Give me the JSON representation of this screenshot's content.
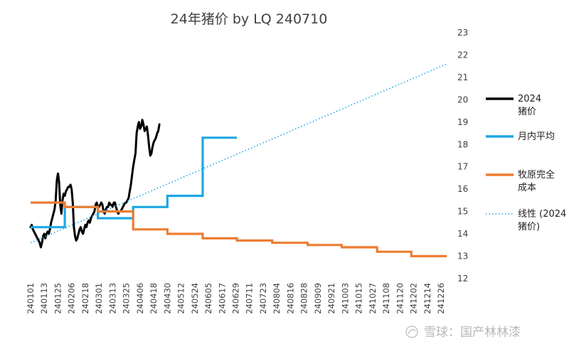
{
  "chart_data": {
    "type": "line",
    "title": "24年猪价  by LQ 240710",
    "xlabel": "",
    "ylabel": "",
    "ylim": [
      12,
      23
    ],
    "yticks": [
      12,
      13,
      14,
      15,
      16,
      17,
      18,
      19,
      20,
      21,
      22,
      23
    ],
    "grid": false,
    "legend_position": "right",
    "x_tick_labels": [
      "240101",
      "240113",
      "240125",
      "240206",
      "240218",
      "240301",
      "240313",
      "240325",
      "240406",
      "240418",
      "240430",
      "240512",
      "240524",
      "240605",
      "240617",
      "240629",
      "240711",
      "240723",
      "240804",
      "240816",
      "240828",
      "240909",
      "240921",
      "241003",
      "241015",
      "241027",
      "241108",
      "241120",
      "241202",
      "241214",
      "241226"
    ],
    "series": [
      {
        "name": "2024猪价",
        "color": "#000000",
        "style": "solid-thick",
        "points": [
          [
            "240101",
            14.3
          ],
          [
            "240102",
            14.4
          ],
          [
            "240103",
            14.2
          ],
          [
            "240104",
            14.1
          ],
          [
            "240105",
            14.0
          ],
          [
            "240106",
            13.9
          ],
          [
            "240107",
            13.8
          ],
          [
            "240108",
            13.7
          ],
          [
            "240109",
            13.6
          ],
          [
            "240110",
            13.4
          ],
          [
            "240111",
            13.6
          ],
          [
            "240112",
            13.9
          ],
          [
            "240113",
            14.0
          ],
          [
            "240114",
            13.8
          ],
          [
            "240115",
            14.0
          ],
          [
            "240116",
            14.1
          ],
          [
            "240117",
            14.0
          ],
          [
            "240118",
            14.2
          ],
          [
            "240119",
            14.5
          ],
          [
            "240120",
            14.7
          ],
          [
            "240121",
            14.9
          ],
          [
            "240122",
            15.1
          ],
          [
            "240123",
            15.5
          ],
          [
            "240124",
            16.4
          ],
          [
            "240125",
            16.7
          ],
          [
            "240126",
            16.3
          ],
          [
            "240127",
            15.3
          ],
          [
            "240128",
            14.9
          ],
          [
            "240129",
            15.5
          ],
          [
            "240130",
            15.8
          ],
          [
            "240131",
            15.7
          ],
          [
            "240201",
            15.9
          ],
          [
            "240202",
            16.0
          ],
          [
            "240203",
            16.1
          ],
          [
            "240204",
            16.1
          ],
          [
            "240205",
            16.2
          ],
          [
            "240206",
            16.0
          ],
          [
            "240207",
            15.4
          ],
          [
            "240208",
            14.3
          ],
          [
            "240209",
            13.9
          ],
          [
            "240210",
            13.7
          ],
          [
            "240211",
            13.8
          ],
          [
            "240212",
            14.0
          ],
          [
            "240213",
            14.2
          ],
          [
            "240214",
            14.3
          ],
          [
            "240215",
            14.1
          ],
          [
            "240216",
            14.0
          ],
          [
            "240217",
            14.2
          ],
          [
            "240218",
            14.4
          ],
          [
            "240219",
            14.3
          ],
          [
            "240220",
            14.5
          ],
          [
            "240221",
            14.6
          ],
          [
            "240222",
            14.5
          ],
          [
            "240223",
            14.7
          ],
          [
            "240224",
            14.8
          ],
          [
            "240225",
            14.9
          ],
          [
            "240226",
            15.0
          ],
          [
            "240227",
            15.3
          ],
          [
            "240228",
            15.4
          ],
          [
            "240229",
            15.2
          ],
          [
            "240301",
            15.2
          ],
          [
            "240302",
            15.3
          ],
          [
            "240303",
            15.4
          ],
          [
            "240304",
            15.3
          ],
          [
            "240305",
            15.0
          ],
          [
            "240306",
            14.9
          ],
          [
            "240307",
            15.1
          ],
          [
            "240308",
            15.2
          ],
          [
            "240309",
            15.2
          ],
          [
            "240310",
            15.4
          ],
          [
            "240311",
            15.3
          ],
          [
            "240312",
            15.3
          ],
          [
            "240313",
            15.2
          ],
          [
            "240314",
            15.4
          ],
          [
            "240315",
            15.4
          ],
          [
            "240316",
            15.2
          ],
          [
            "240317",
            15.0
          ],
          [
            "240318",
            14.9
          ],
          [
            "240319",
            15.0
          ],
          [
            "240320",
            15.0
          ],
          [
            "240321",
            15.1
          ],
          [
            "240322",
            15.2
          ],
          [
            "240323",
            15.3
          ],
          [
            "240324",
            15.4
          ],
          [
            "240325",
            15.4
          ],
          [
            "240326",
            15.5
          ],
          [
            "240327",
            15.6
          ],
          [
            "240328",
            15.9
          ],
          [
            "240329",
            16.2
          ],
          [
            "240330",
            16.6
          ],
          [
            "240331",
            17.0
          ],
          [
            "240401",
            17.3
          ],
          [
            "240402",
            17.6
          ],
          [
            "240403",
            18.5
          ],
          [
            "240404",
            18.8
          ],
          [
            "240405",
            19.0
          ],
          [
            "240406",
            18.7
          ],
          [
            "240407",
            18.8
          ],
          [
            "240408",
            19.1
          ],
          [
            "240409",
            18.9
          ],
          [
            "240410",
            18.6
          ],
          [
            "240411",
            18.7
          ],
          [
            "240412",
            18.8
          ],
          [
            "240413",
            18.4
          ],
          [
            "240414",
            17.9
          ],
          [
            "240415",
            17.5
          ],
          [
            "240416",
            17.6
          ],
          [
            "240417",
            17.9
          ],
          [
            "240418",
            18.1
          ],
          [
            "240419",
            18.2
          ],
          [
            "240420",
            18.3
          ],
          [
            "240421",
            18.5
          ],
          [
            "240422",
            18.6
          ],
          [
            "240423",
            18.9
          ]
        ]
      },
      {
        "name": "月内平均",
        "color": "#1ea7e4",
        "style": "solid-step",
        "steps": [
          [
            "240101",
            "240131",
            14.3
          ],
          [
            "240131",
            "240229",
            15.2
          ],
          [
            "240229",
            "240331",
            14.7
          ],
          [
            "240331",
            "240430",
            15.2
          ],
          [
            "240430",
            "240531",
            15.7
          ],
          [
            "240531",
            "240630",
            18.3
          ]
        ]
      },
      {
        "name": "牧原完全成本",
        "color": "#ed7d31",
        "style": "solid-step",
        "steps": [
          [
            "240101",
            "240131",
            15.4
          ],
          [
            "240131",
            "240229",
            15.2
          ],
          [
            "240229",
            "240331",
            15.0
          ],
          [
            "240331",
            "240430",
            14.2
          ],
          [
            "240430",
            "240531",
            14.0
          ],
          [
            "240531",
            "240630",
            13.8
          ],
          [
            "240630",
            "240731",
            13.7
          ],
          [
            "240731",
            "240831",
            13.6
          ],
          [
            "240831",
            "240930",
            13.5
          ],
          [
            "240930",
            "241031",
            13.4
          ],
          [
            "241031",
            "241130",
            13.2
          ],
          [
            "241130",
            "241231",
            13.0
          ]
        ]
      },
      {
        "name": "线性 (2024猪价)",
        "color": "#1ea7e4",
        "style": "dotted-trendline",
        "line": [
          [
            "240101",
            13.6
          ],
          [
            "241231",
            21.6
          ]
        ]
      }
    ],
    "legend": [
      {
        "label": "2024猪价",
        "color": "#000000"
      },
      {
        "label": "月内平均",
        "color": "#1ea7e4"
      },
      {
        "label": "牧原完全成本",
        "color": "#ed7d31"
      },
      {
        "label": "线性 (2024猪价)",
        "color": "#1ea7e4"
      }
    ]
  },
  "watermark": {
    "text": "雪球：国产林林漆"
  }
}
